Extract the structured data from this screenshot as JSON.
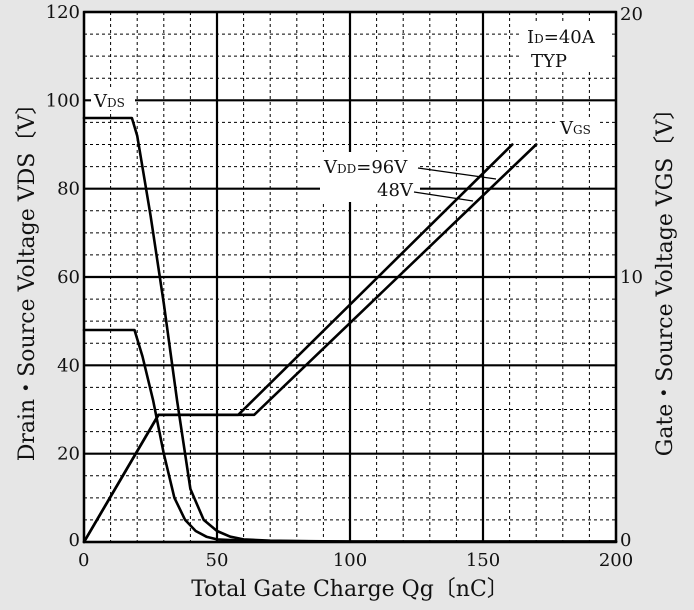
{
  "chart_data": {
    "type": "line",
    "title": "",
    "xlabel": "Total Gate Charge Qg〔nC〕",
    "ylabel_left": "Drain・Source Voltage VDS〔V〕",
    "ylabel_right": "Gate・Source Voltage VGS〔V〕",
    "xlim": [
      0,
      200
    ],
    "ylim_left": [
      0,
      120
    ],
    "ylim_right": [
      0,
      20
    ],
    "grid": true,
    "x_ticks": [
      0,
      50,
      100,
      150,
      200
    ],
    "y_left_ticks": [
      0,
      20,
      40,
      60,
      80,
      100,
      120
    ],
    "y_right_ticks": [
      0,
      10,
      20
    ],
    "conditions": {
      "id_prefix": "I",
      "id_sub": "D",
      "id_value": "=40A",
      "typ": "TYP"
    },
    "series_labels": {
      "vds_main": "V",
      "vds_sub": "DS",
      "vgs_main": "V",
      "vgs_sub": "GS",
      "vdd_main": "V",
      "vdd_sub": "DD",
      "vdd_96": "=96V",
      "vdd_48": "48V"
    },
    "series": [
      {
        "name": "VDS VDD=96V",
        "axis": "left",
        "x": [
          0,
          18,
          20,
          25,
          30,
          35,
          40,
          45,
          50,
          55,
          60,
          70,
          80,
          100,
          150,
          200
        ],
        "y": [
          96,
          96,
          92,
          74,
          54,
          32,
          12,
          5,
          2.5,
          1.2,
          0.6,
          0.3,
          0.2,
          0.1,
          0.1,
          0.1
        ]
      },
      {
        "name": "VDS VDD=48V",
        "axis": "left",
        "x": [
          0,
          19,
          22,
          26,
          30,
          34,
          38,
          42,
          46,
          50,
          60,
          70,
          100,
          150,
          200
        ],
        "y": [
          48,
          48,
          42,
          32,
          20,
          10,
          5,
          2.5,
          1.2,
          0.6,
          0.3,
          0.2,
          0.1,
          0.1,
          0.1
        ]
      },
      {
        "name": "VGS VDD=96V",
        "axis": "right",
        "x": [
          0,
          28,
          64,
          170
        ],
        "y": [
          0,
          4.8,
          4.8,
          15
        ]
      },
      {
        "name": "VGS VDD=48V",
        "axis": "right",
        "x": [
          0,
          28,
          58,
          161
        ],
        "y": [
          0,
          4.8,
          4.8,
          15
        ]
      }
    ]
  }
}
